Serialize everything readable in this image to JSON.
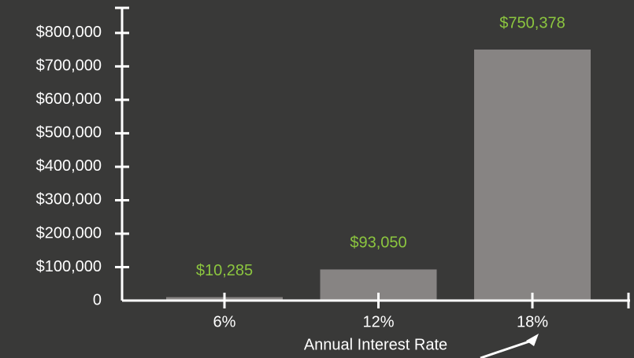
{
  "chart_data": {
    "type": "bar",
    "xlabel": "Annual Interest Rate",
    "categories": [
      "6%",
      "12%",
      "18%"
    ],
    "values": [
      10285,
      93050,
      750378
    ],
    "value_labels": [
      "$10,285",
      "$93,050",
      "$750,378"
    ],
    "color": "#878483",
    "label_color": "#8cc63f",
    "ylim": [
      0,
      875000
    ],
    "yticks": [
      0,
      {
        "value": 100000,
        "label": "$100,000"
      },
      {
        "value": 200000,
        "label": "$200,000"
      },
      {
        "value": 300000,
        "label": "$300,000"
      },
      {
        "value": 400000,
        "label": "$400,000"
      },
      {
        "value": 500000,
        "label": "$500,000"
      },
      {
        "value": 600000,
        "label": "$600,000"
      },
      {
        "value": 700000,
        "label": "$700,000"
      },
      {
        "value": 800000,
        "label": "$800,000"
      }
    ],
    "grid": false
  }
}
